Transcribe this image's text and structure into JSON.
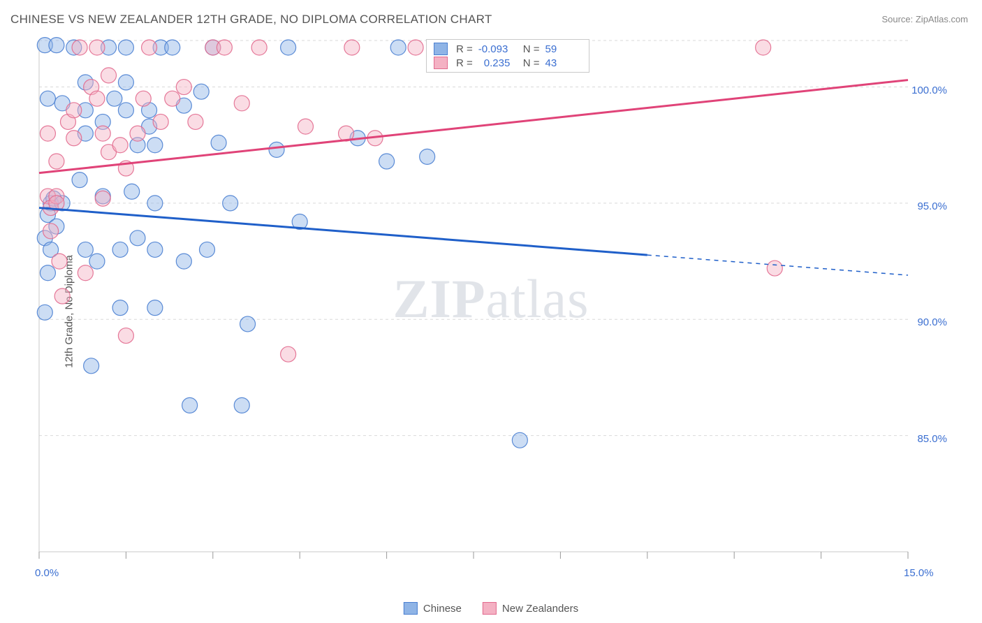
{
  "title": "CHINESE VS NEW ZEALANDER 12TH GRADE, NO DIPLOMA CORRELATION CHART",
  "source": "Source: ZipAtlas.com",
  "ylabel": "12th Grade, No Diploma",
  "watermark_prefix": "ZIP",
  "watermark_suffix": "atlas",
  "chart": {
    "type": "scatter",
    "background_color": "#ffffff",
    "grid_color": "#d9d9d9",
    "axis_color": "#c9c9c9",
    "tick_color": "#999999",
    "xlim": [
      0,
      15
    ],
    "ylim": [
      80,
      102
    ],
    "xtick_labels": [
      {
        "x": 0.0,
        "label": "0.0%"
      },
      {
        "x": 15.0,
        "label": "15.0%"
      }
    ],
    "xtick_positions": [
      0,
      1.5,
      3,
      4.5,
      6,
      7.5,
      9,
      10.5,
      12,
      13.5,
      15
    ],
    "ytick_labels": [
      "85.0%",
      "90.0%",
      "95.0%",
      "100.0%"
    ],
    "ytick_positions": [
      85,
      90,
      95,
      100
    ],
    "gridlines_y": [
      85,
      90,
      95,
      100,
      102
    ],
    "marker_radius": 11,
    "marker_fill_opacity": 0.45,
    "marker_stroke_opacity": 0.9,
    "marker_stroke_width": 1.2,
    "line_width": 3,
    "series": [
      {
        "name": "Chinese",
        "color_fill": "#8fb4e6",
        "color_stroke": "#4a7fd1",
        "line_color": "#1f5fc9",
        "R": "-0.093",
        "N": "59",
        "trend": {
          "x1": 0,
          "y1": 94.8,
          "x2": 15,
          "y2": 91.9,
          "solid_until_x": 10.5
        },
        "points": [
          [
            0.1,
            101.8
          ],
          [
            0.3,
            101.8
          ],
          [
            0.15,
            99.5
          ],
          [
            0.2,
            95.0
          ],
          [
            0.15,
            94.5
          ],
          [
            0.1,
            93.5
          ],
          [
            0.2,
            93.0
          ],
          [
            0.15,
            92.0
          ],
          [
            0.1,
            90.3
          ],
          [
            0.25,
            95.2
          ],
          [
            0.3,
            94.0
          ],
          [
            0.4,
            95.0
          ],
          [
            0.4,
            99.3
          ],
          [
            0.6,
            101.7
          ],
          [
            0.7,
            96.0
          ],
          [
            0.8,
            98.0
          ],
          [
            0.8,
            99.0
          ],
          [
            0.8,
            100.2
          ],
          [
            0.8,
            93.0
          ],
          [
            0.9,
            88.0
          ],
          [
            1.0,
            92.5
          ],
          [
            1.1,
            98.5
          ],
          [
            1.1,
            95.3
          ],
          [
            1.2,
            101.7
          ],
          [
            1.3,
            99.5
          ],
          [
            1.4,
            93.0
          ],
          [
            1.4,
            90.5
          ],
          [
            1.5,
            101.7
          ],
          [
            1.5,
            100.2
          ],
          [
            1.5,
            99.0
          ],
          [
            1.6,
            95.5
          ],
          [
            1.7,
            97.5
          ],
          [
            1.7,
            93.5
          ],
          [
            1.9,
            99.0
          ],
          [
            1.9,
            98.3
          ],
          [
            2.0,
            97.5
          ],
          [
            2.0,
            95.0
          ],
          [
            2.0,
            93.0
          ],
          [
            2.0,
            90.5
          ],
          [
            2.1,
            101.7
          ],
          [
            2.3,
            101.7
          ],
          [
            2.5,
            92.5
          ],
          [
            2.5,
            99.2
          ],
          [
            2.6,
            86.3
          ],
          [
            2.8,
            99.8
          ],
          [
            2.9,
            93.0
          ],
          [
            3.0,
            101.7
          ],
          [
            3.1,
            97.6
          ],
          [
            3.3,
            95.0
          ],
          [
            3.5,
            86.3
          ],
          [
            3.6,
            89.8
          ],
          [
            4.1,
            97.3
          ],
          [
            4.3,
            101.7
          ],
          [
            4.5,
            94.2
          ],
          [
            5.5,
            97.8
          ],
          [
            6.0,
            96.8
          ],
          [
            6.2,
            101.7
          ],
          [
            6.7,
            97.0
          ],
          [
            8.3,
            84.8
          ]
        ]
      },
      {
        "name": "New Zealanders",
        "color_fill": "#f4b1c3",
        "color_stroke": "#e26a8e",
        "line_color": "#e04378",
        "R": "0.235",
        "N": "43",
        "trend": {
          "x1": 0,
          "y1": 96.3,
          "x2": 15,
          "y2": 100.3,
          "solid_until_x": 15
        },
        "points": [
          [
            0.15,
            98.0
          ],
          [
            0.15,
            95.3
          ],
          [
            0.2,
            93.8
          ],
          [
            0.2,
            94.8
          ],
          [
            0.3,
            95.3
          ],
          [
            0.3,
            95.0
          ],
          [
            0.3,
            96.8
          ],
          [
            0.35,
            92.5
          ],
          [
            0.4,
            91.0
          ],
          [
            0.5,
            98.5
          ],
          [
            0.6,
            99.0
          ],
          [
            0.6,
            97.8
          ],
          [
            0.7,
            101.7
          ],
          [
            0.8,
            92.0
          ],
          [
            0.9,
            100.0
          ],
          [
            1.0,
            101.7
          ],
          [
            1.0,
            99.5
          ],
          [
            1.1,
            98.0
          ],
          [
            1.1,
            95.2
          ],
          [
            1.2,
            100.5
          ],
          [
            1.2,
            97.2
          ],
          [
            1.4,
            97.5
          ],
          [
            1.5,
            96.5
          ],
          [
            1.5,
            89.3
          ],
          [
            1.7,
            98.0
          ],
          [
            1.8,
            99.5
          ],
          [
            1.9,
            101.7
          ],
          [
            2.1,
            98.5
          ],
          [
            2.3,
            99.5
          ],
          [
            2.5,
            100.0
          ],
          [
            2.7,
            98.5
          ],
          [
            3.0,
            101.7
          ],
          [
            3.2,
            101.7
          ],
          [
            3.5,
            99.3
          ],
          [
            3.8,
            101.7
          ],
          [
            4.3,
            88.5
          ],
          [
            4.6,
            98.3
          ],
          [
            5.3,
            98.0
          ],
          [
            5.4,
            101.7
          ],
          [
            5.8,
            97.8
          ],
          [
            6.5,
            101.7
          ],
          [
            12.5,
            101.7
          ],
          [
            12.7,
            92.2
          ]
        ]
      }
    ]
  },
  "legend_labels": {
    "R": "R =",
    "N": "N ="
  }
}
